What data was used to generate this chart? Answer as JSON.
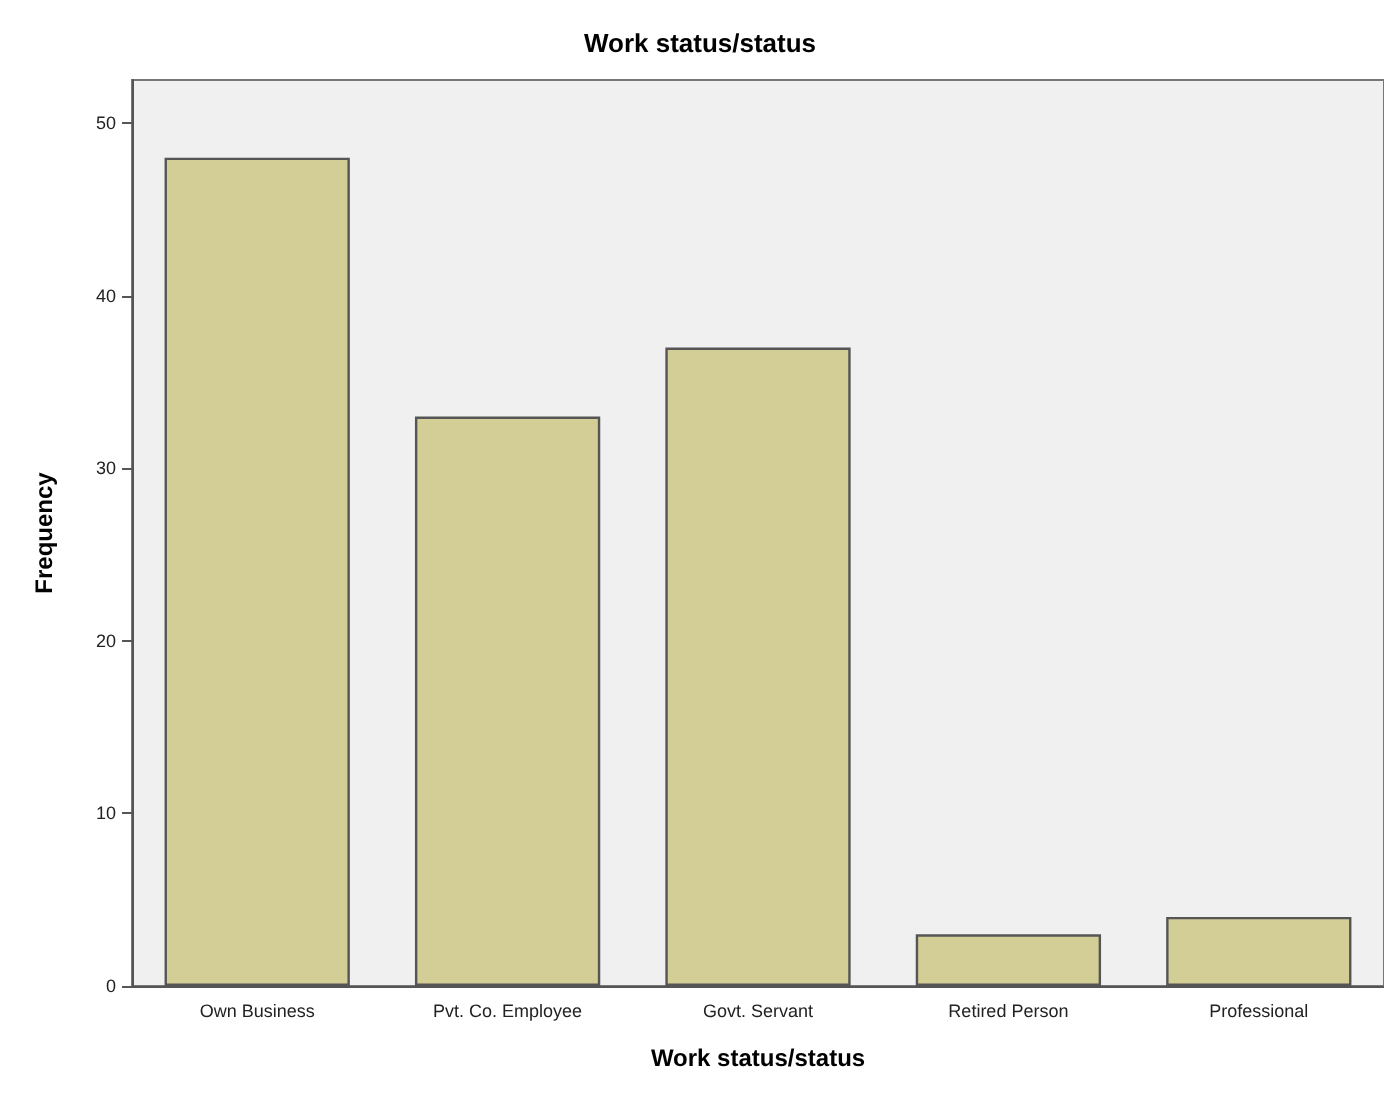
{
  "chart_data": {
    "type": "bar",
    "title": "Work status/status",
    "xlabel": "Work status/status",
    "ylabel": "Frequency",
    "categories": [
      "Own Business",
      "Pvt. Co. Employee",
      "Govt. Servant",
      "Retired Person",
      "Professional"
    ],
    "values": [
      48,
      33,
      37,
      3,
      4
    ],
    "color": "#d3cd96",
    "ylim": [
      0,
      52.5
    ],
    "yticks": [
      0,
      10,
      20,
      30,
      40,
      50
    ],
    "grid": false
  }
}
